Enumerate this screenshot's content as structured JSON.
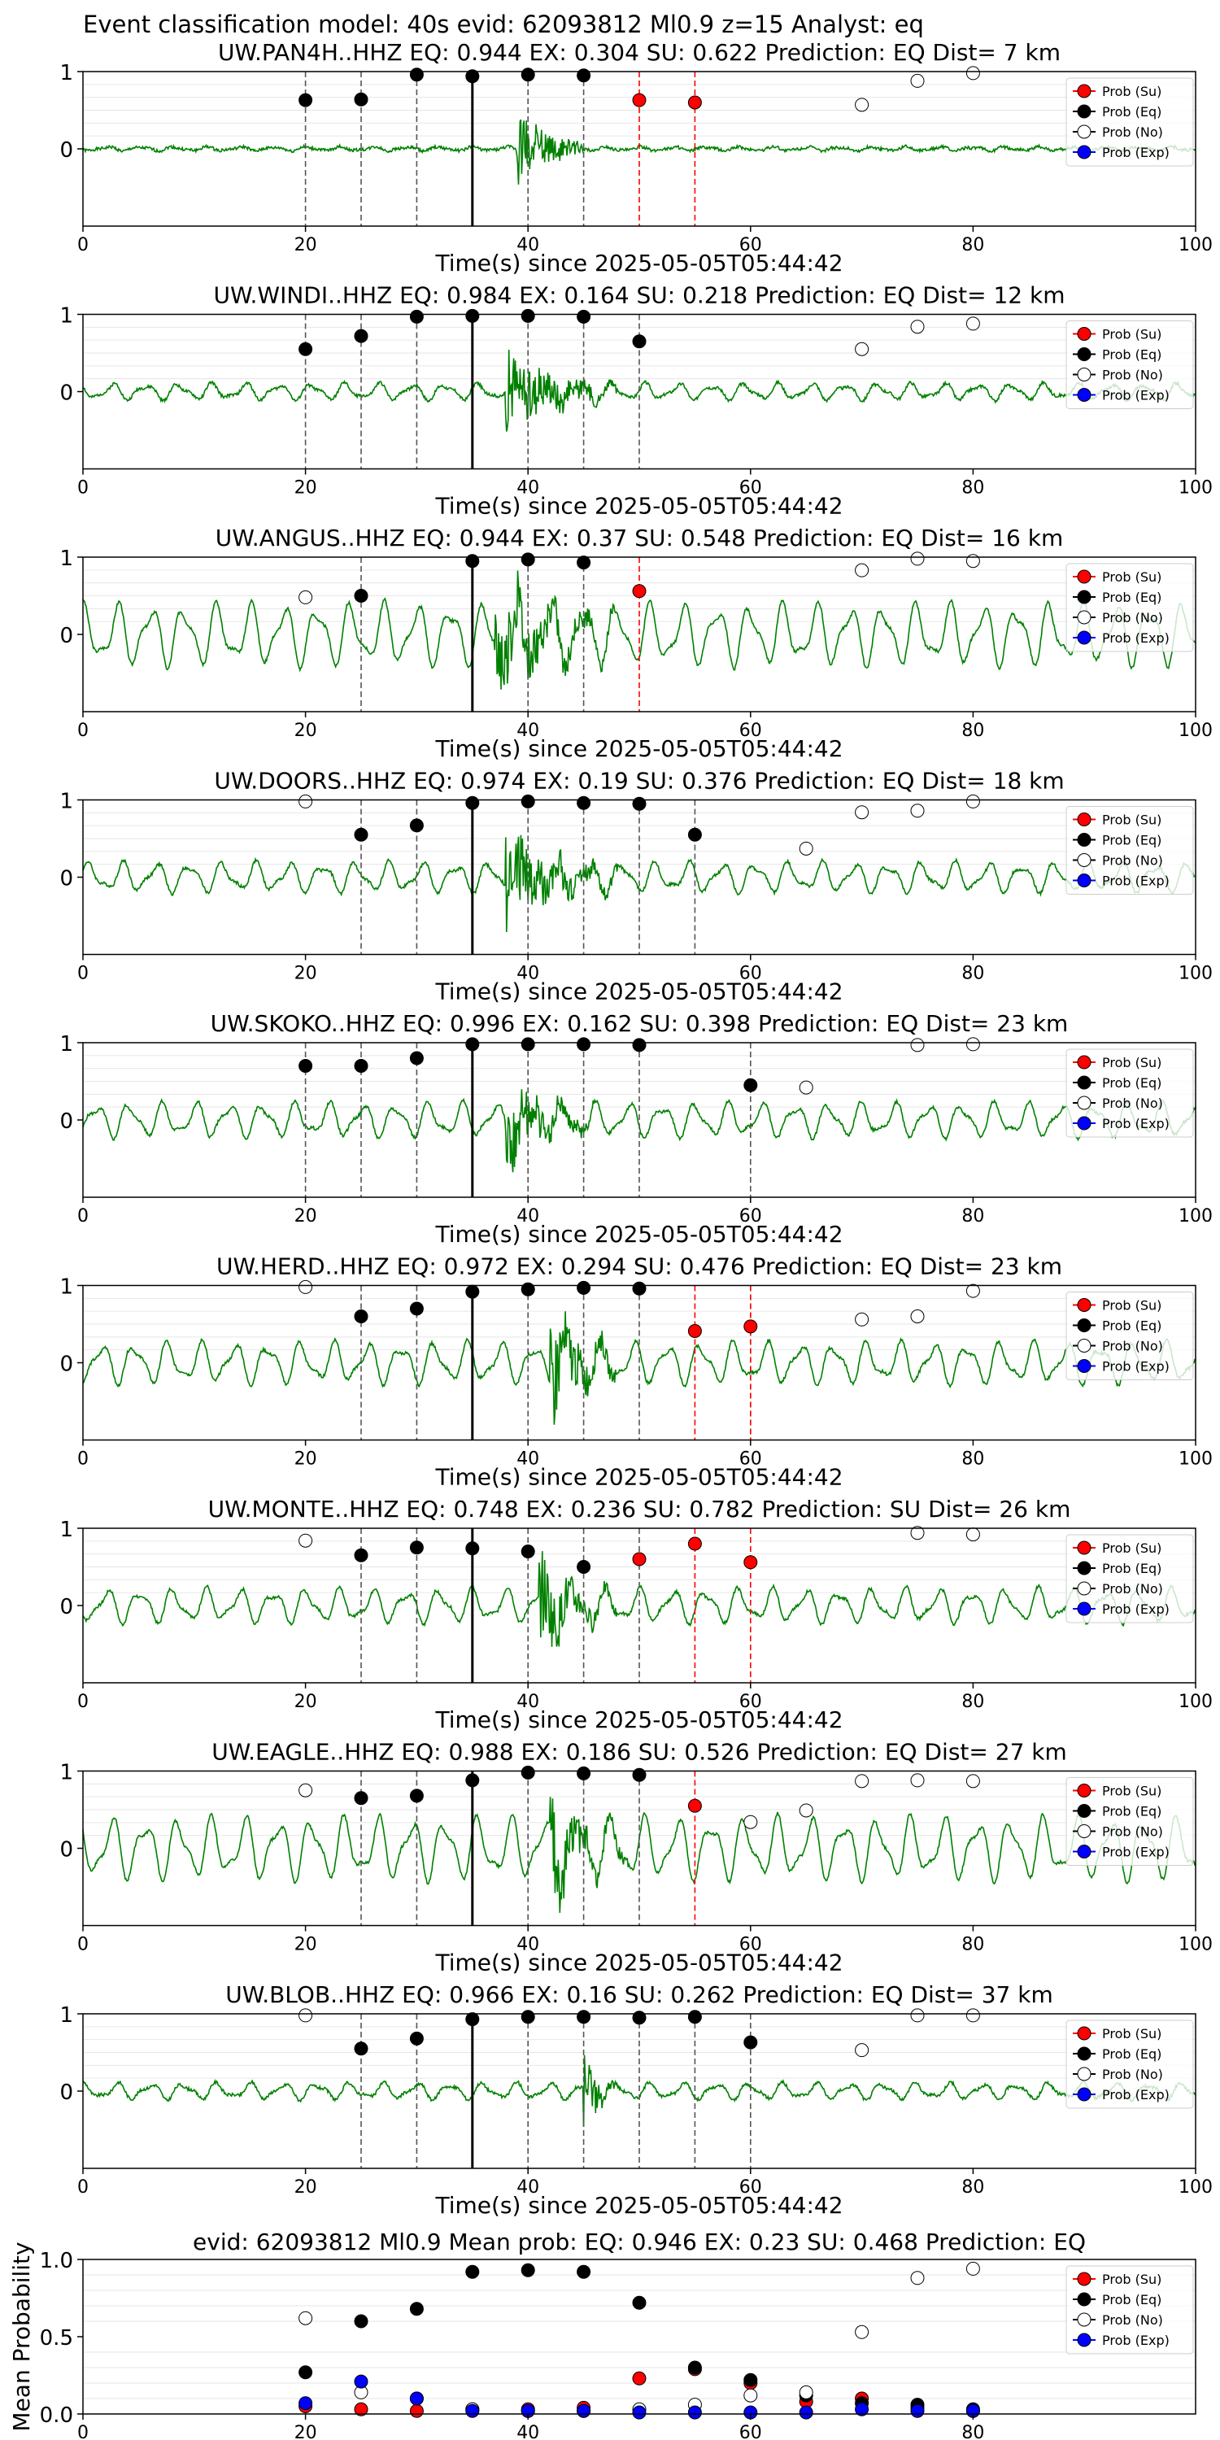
{
  "figure_title": "Event classification model: 40s evid: 62093812 Ml0.9 z=15 Analyst: eq",
  "xlabel": "Time(s) since 2025-05-05T05:44:42",
  "legend": [
    "Prob (Su)",
    "Prob (Eq)",
    "Prob (No)",
    "Prob (Exp)"
  ],
  "colors": {
    "trace": "#008000",
    "su": "#ff0000",
    "eq": "#000000",
    "no": "#ffffff",
    "exp": "#0000ff",
    "eq_line": "#555555",
    "su_line": "#ff0000",
    "origin_line": "#000000"
  },
  "chart_data": [
    {
      "type": "line",
      "station": "UW.PAN4H..HHZ",
      "title": "UW.PAN4H..HHZ   EQ: 0.944  EX: 0.304  SU: 0.622   Prediction: EQ    Dist= 7 km",
      "xlim": [
        0,
        100
      ],
      "xticks": [
        0,
        20,
        40,
        60,
        80,
        100
      ],
      "ylim": [
        -1,
        1
      ],
      "yticks": [
        0,
        1
      ],
      "onset": 35,
      "amp_seed": 1,
      "noise_amp": 0.03,
      "burst_amp": 0.6,
      "burst_start": 39,
      "burst_end": 45,
      "eq_lines": [
        20,
        25,
        30,
        40,
        45
      ],
      "su_lines": [
        50,
        55
      ],
      "points": {
        "su": [
          [
            50,
            0.63
          ],
          [
            55,
            0.6
          ]
        ],
        "eq": [
          [
            20,
            0.63
          ],
          [
            25,
            0.64
          ],
          [
            30,
            0.96
          ],
          [
            35,
            0.94
          ],
          [
            40,
            0.96
          ],
          [
            45,
            0.95
          ]
        ],
        "no": [
          [
            70,
            0.57
          ],
          [
            75,
            0.88
          ],
          [
            80,
            0.98
          ]
        ],
        "exp": []
      }
    },
    {
      "type": "line",
      "station": "UW.WINDI..HHZ",
      "title": "UW.WINDI..HHZ   EQ: 0.984  EX: 0.164  SU: 0.218   Prediction: EQ    Dist= 12 km",
      "xlim": [
        0,
        100
      ],
      "xticks": [
        0,
        20,
        40,
        60,
        80,
        100
      ],
      "ylim": [
        -1,
        1
      ],
      "yticks": [
        0,
        1
      ],
      "onset": 35,
      "amp_seed": 2,
      "noise_amp": 0.12,
      "burst_amp": 0.55,
      "burst_start": 38,
      "burst_end": 48,
      "eq_lines": [
        20,
        25,
        30,
        40,
        45,
        50
      ],
      "su_lines": [],
      "points": {
        "su": [],
        "eq": [
          [
            20,
            0.55
          ],
          [
            25,
            0.72
          ],
          [
            30,
            0.97
          ],
          [
            35,
            0.98
          ],
          [
            40,
            0.98
          ],
          [
            45,
            0.97
          ],
          [
            50,
            0.65
          ]
        ],
        "no": [
          [
            70,
            0.55
          ],
          [
            75,
            0.84
          ],
          [
            80,
            0.88
          ]
        ],
        "exp": []
      }
    },
    {
      "type": "line",
      "station": "UW.ANGUS..HHZ",
      "title": "UW.ANGUS..HHZ   EQ: 0.944  EX: 0.37  SU: 0.548   Prediction: EQ    Dist= 16 km",
      "xlim": [
        0,
        100
      ],
      "xticks": [
        0,
        20,
        40,
        60,
        80,
        100
      ],
      "ylim": [
        -1,
        1
      ],
      "yticks": [
        0,
        1
      ],
      "onset": 35,
      "amp_seed": 3,
      "noise_amp": 0.45,
      "burst_amp": 0.6,
      "burst_start": 37,
      "burst_end": 48,
      "eq_lines": [
        25,
        40,
        45
      ],
      "su_lines": [
        50
      ],
      "points": {
        "su": [
          [
            50,
            0.56
          ]
        ],
        "eq": [
          [
            25,
            0.5
          ],
          [
            35,
            0.95
          ],
          [
            40,
            0.97
          ],
          [
            45,
            0.93
          ]
        ],
        "no": [
          [
            20,
            0.48
          ],
          [
            70,
            0.83
          ],
          [
            75,
            0.98
          ],
          [
            80,
            0.95
          ]
        ],
        "exp": []
      }
    },
    {
      "type": "line",
      "station": "UW.DOORS..HHZ",
      "title": "UW.DOORS..HHZ   EQ: 0.974  EX: 0.19  SU: 0.376   Prediction: EQ    Dist= 18 km",
      "xlim": [
        0,
        100
      ],
      "xticks": [
        0,
        20,
        40,
        60,
        80,
        100
      ],
      "ylim": [
        -1,
        1
      ],
      "yticks": [
        0,
        1
      ],
      "onset": 35,
      "amp_seed": 4,
      "noise_amp": 0.22,
      "burst_amp": 0.65,
      "burst_start": 38,
      "burst_end": 48,
      "eq_lines": [
        25,
        30,
        40,
        45,
        50,
        55
      ],
      "su_lines": [],
      "points": {
        "su": [],
        "eq": [
          [
            25,
            0.55
          ],
          [
            30,
            0.67
          ],
          [
            35,
            0.96
          ],
          [
            40,
            0.98
          ],
          [
            45,
            0.96
          ],
          [
            50,
            0.95
          ],
          [
            55,
            0.55
          ]
        ],
        "no": [
          [
            20,
            0.98
          ],
          [
            65,
            0.37
          ],
          [
            70,
            0.84
          ],
          [
            75,
            0.86
          ],
          [
            80,
            0.98
          ]
        ],
        "exp": []
      }
    },
    {
      "type": "line",
      "station": "UW.SKOKO..HHZ",
      "title": "UW.SKOKO..HHZ   EQ: 0.996  EX: 0.162  SU: 0.398   Prediction: EQ    Dist= 23 km",
      "xlim": [
        0,
        100
      ],
      "xticks": [
        0,
        20,
        40,
        60,
        80,
        100
      ],
      "ylim": [
        -1,
        1
      ],
      "yticks": [
        0,
        1
      ],
      "onset": 35,
      "amp_seed": 5,
      "noise_amp": 0.25,
      "burst_amp": 0.55,
      "burst_start": 38,
      "burst_end": 46,
      "eq_lines": [
        20,
        25,
        30,
        40,
        45,
        50,
        60
      ],
      "su_lines": [],
      "points": {
        "su": [],
        "eq": [
          [
            20,
            0.7
          ],
          [
            25,
            0.7
          ],
          [
            30,
            0.8
          ],
          [
            35,
            0.98
          ],
          [
            40,
            0.98
          ],
          [
            45,
            0.98
          ],
          [
            50,
            0.97
          ],
          [
            60,
            0.45
          ]
        ],
        "no": [
          [
            65,
            0.42
          ],
          [
            75,
            0.97
          ],
          [
            80,
            0.98
          ]
        ],
        "exp": []
      }
    },
    {
      "type": "line",
      "station": "UW.HERD..HHZ",
      "title": "UW.HERD..HHZ   EQ: 0.972  EX: 0.294  SU: 0.476   Prediction: EQ    Dist= 23 km",
      "xlim": [
        0,
        100
      ],
      "xticks": [
        0,
        20,
        40,
        60,
        80,
        100
      ],
      "ylim": [
        -1,
        1
      ],
      "yticks": [
        0,
        1
      ],
      "onset": 35,
      "amp_seed": 6,
      "noise_amp": 0.3,
      "burst_amp": 0.75,
      "burst_start": 42,
      "burst_end": 48,
      "eq_lines": [
        25,
        30,
        40,
        45,
        50,
        60
      ],
      "su_lines": [
        55,
        60
      ],
      "points": {
        "su": [
          [
            55,
            0.41
          ],
          [
            60,
            0.47
          ]
        ],
        "eq": [
          [
            25,
            0.6
          ],
          [
            30,
            0.7
          ],
          [
            35,
            0.92
          ],
          [
            40,
            0.95
          ],
          [
            45,
            0.97
          ],
          [
            50,
            0.96
          ]
        ],
        "no": [
          [
            20,
            0.98
          ],
          [
            70,
            0.56
          ],
          [
            75,
            0.6
          ],
          [
            80,
            0.93
          ]
        ],
        "exp": []
      }
    },
    {
      "type": "line",
      "station": "UW.MONTE..HHZ",
      "title": "UW.MONTE..HHZ   EQ: 0.748  EX: 0.236  SU: 0.782   Prediction: SU    Dist= 26 km",
      "xlim": [
        0,
        100
      ],
      "xticks": [
        0,
        20,
        40,
        60,
        80,
        100
      ],
      "ylim": [
        -1,
        1
      ],
      "yticks": [
        0,
        1
      ],
      "onset": 35,
      "amp_seed": 7,
      "noise_amp": 0.25,
      "burst_amp": 0.6,
      "burst_start": 41,
      "burst_end": 48,
      "eq_lines": [
        25,
        30,
        40,
        45,
        50
      ],
      "su_lines": [
        55,
        60
      ],
      "points": {
        "su": [
          [
            50,
            0.6
          ],
          [
            55,
            0.8
          ],
          [
            60,
            0.56
          ]
        ],
        "eq": [
          [
            25,
            0.65
          ],
          [
            30,
            0.75
          ],
          [
            35,
            0.74
          ],
          [
            40,
            0.7
          ],
          [
            45,
            0.5
          ]
        ],
        "no": [
          [
            20,
            0.84
          ],
          [
            75,
            0.94
          ],
          [
            80,
            0.92
          ]
        ],
        "exp": []
      }
    },
    {
      "type": "line",
      "station": "UW.EAGLE..HHZ",
      "title": "UW.EAGLE..HHZ   EQ: 0.988  EX: 0.186  SU: 0.526   Prediction: EQ    Dist= 27 km",
      "xlim": [
        0,
        100
      ],
      "xticks": [
        0,
        20,
        40,
        60,
        80,
        100
      ],
      "ylim": [
        -1,
        1
      ],
      "yticks": [
        0,
        1
      ],
      "onset": 35,
      "amp_seed": 8,
      "noise_amp": 0.45,
      "burst_amp": 0.55,
      "burst_start": 42,
      "burst_end": 49,
      "eq_lines": [
        25,
        30,
        40,
        45,
        50
      ],
      "su_lines": [
        55
      ],
      "points": {
        "su": [
          [
            55,
            0.55
          ]
        ],
        "eq": [
          [
            25,
            0.65
          ],
          [
            30,
            0.68
          ],
          [
            35,
            0.88
          ],
          [
            40,
            0.98
          ],
          [
            45,
            0.97
          ],
          [
            50,
            0.95
          ]
        ],
        "no": [
          [
            20,
            0.75
          ],
          [
            60,
            0.34
          ],
          [
            65,
            0.49
          ],
          [
            70,
            0.87
          ],
          [
            75,
            0.88
          ],
          [
            80,
            0.87
          ]
        ],
        "exp": []
      }
    },
    {
      "type": "line",
      "station": "UW.BLOB..HHZ",
      "title": "UW.BLOB..HHZ   EQ: 0.966  EX: 0.16  SU: 0.262   Prediction: EQ    Dist= 37 km",
      "xlim": [
        0,
        100
      ],
      "xticks": [
        0,
        20,
        40,
        60,
        80,
        100
      ],
      "ylim": [
        -1,
        1
      ],
      "yticks": [
        0,
        1
      ],
      "onset": 35,
      "amp_seed": 9,
      "noise_amp": 0.12,
      "burst_amp": 0.55,
      "burst_start": 45,
      "burst_end": 48,
      "eq_lines": [
        25,
        30,
        40,
        45,
        50,
        55,
        60
      ],
      "su_lines": [],
      "points": {
        "su": [],
        "eq": [
          [
            25,
            0.55
          ],
          [
            30,
            0.68
          ],
          [
            35,
            0.93
          ],
          [
            40,
            0.96
          ],
          [
            45,
            0.96
          ],
          [
            50,
            0.95
          ],
          [
            55,
            0.96
          ],
          [
            60,
            0.63
          ]
        ],
        "no": [
          [
            20,
            0.98
          ],
          [
            70,
            0.53
          ],
          [
            75,
            0.98
          ],
          [
            80,
            0.98
          ]
        ],
        "exp": []
      }
    },
    {
      "type": "scatter",
      "title": "evid: 62093812  Ml0.9   Mean prob:   EQ: 0.946  EX: 0.23  SU: 0.468   Prediction: EQ",
      "ylabel": "Mean Probability",
      "xlim": [
        0,
        100
      ],
      "xticks": [
        0,
        20,
        40,
        60,
        80
      ],
      "ylim": [
        0,
        1
      ],
      "yticks": [
        "0.0",
        "0.5",
        "1.0"
      ],
      "points": {
        "su": [
          [
            20,
            0.05
          ],
          [
            25,
            0.03
          ],
          [
            30,
            0.02
          ],
          [
            35,
            0.03
          ],
          [
            40,
            0.03
          ],
          [
            45,
            0.04
          ],
          [
            50,
            0.23
          ],
          [
            55,
            0.29
          ],
          [
            60,
            0.2
          ],
          [
            65,
            0.08
          ],
          [
            70,
            0.1
          ],
          [
            75,
            0.04
          ],
          [
            80,
            0.02
          ]
        ],
        "eq": [
          [
            20,
            0.27
          ],
          [
            25,
            0.6
          ],
          [
            30,
            0.68
          ],
          [
            35,
            0.92
          ],
          [
            40,
            0.93
          ],
          [
            45,
            0.92
          ],
          [
            50,
            0.72
          ],
          [
            55,
            0.3
          ],
          [
            60,
            0.22
          ],
          [
            65,
            0.12
          ],
          [
            70,
            0.07
          ],
          [
            75,
            0.06
          ],
          [
            80,
            0.03
          ]
        ],
        "no": [
          [
            20,
            0.62
          ],
          [
            25,
            0.14
          ],
          [
            30,
            0.1
          ],
          [
            35,
            0.03
          ],
          [
            40,
            0.02
          ],
          [
            45,
            0.02
          ],
          [
            50,
            0.03
          ],
          [
            55,
            0.06
          ],
          [
            60,
            0.12
          ],
          [
            65,
            0.14
          ],
          [
            70,
            0.53
          ],
          [
            75,
            0.88
          ],
          [
            80,
            0.94
          ]
        ],
        "exp": [
          [
            20,
            0.07
          ],
          [
            25,
            0.21
          ],
          [
            30,
            0.1
          ],
          [
            35,
            0.02
          ],
          [
            40,
            0.02
          ],
          [
            45,
            0.02
          ],
          [
            50,
            0.01
          ],
          [
            55,
            0.01
          ],
          [
            60,
            0.01
          ],
          [
            65,
            0.01
          ],
          [
            70,
            0.03
          ],
          [
            75,
            0.02
          ],
          [
            80,
            0.02
          ]
        ]
      }
    }
  ]
}
